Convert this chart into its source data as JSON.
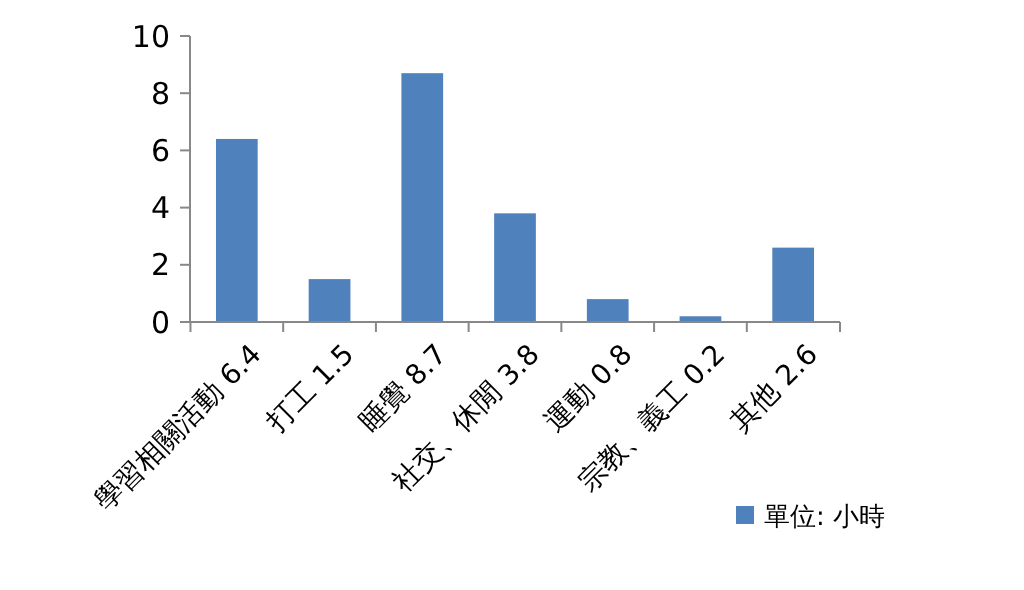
{
  "chart_data": {
    "type": "bar",
    "categories": [
      "學習相關活動 6.4",
      "打工 1.5",
      "睡覺 8.7",
      "社交、休閒 3.8",
      "運動 0.8",
      "宗教、義工 0.2",
      "其他 2.6"
    ],
    "series": [
      {
        "name": "單位: 小時",
        "color": "#4f81bd",
        "values": [
          6.4,
          1.5,
          8.7,
          3.8,
          0.8,
          0.2,
          2.6
        ]
      }
    ],
    "ylim": [
      0,
      10
    ],
    "yticks": [
      0,
      2,
      4,
      6,
      8,
      10
    ],
    "grid": false,
    "legend": "bottom right"
  }
}
